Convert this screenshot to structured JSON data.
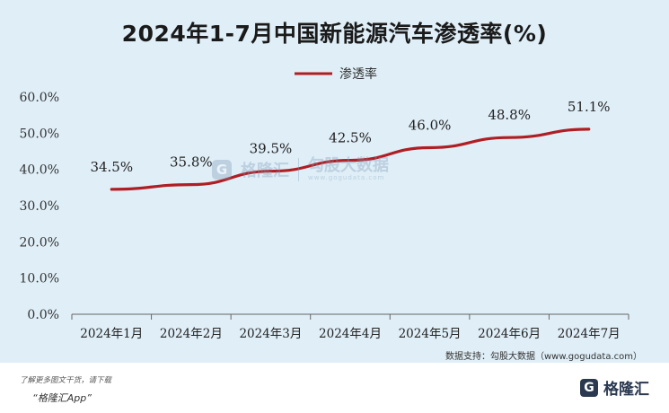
{
  "chart_data": {
    "type": "line",
    "title": "2024年1-7月中国新能源汽车渗透率(%)",
    "categories": [
      "2024年1月",
      "2024年2月",
      "2024年3月",
      "2024年4月",
      "2024年5月",
      "2024年6月",
      "2024年7月"
    ],
    "series": [
      {
        "name": "渗透率",
        "values": [
          34.5,
          35.8,
          39.5,
          42.5,
          46.0,
          48.8,
          51.1
        ]
      }
    ],
    "data_labels": [
      "34.5%",
      "35.8%",
      "39.5%",
      "42.5%",
      "46.0%",
      "48.8%",
      "51.1%"
    ],
    "yticks": [
      "0.0%",
      "10.0%",
      "20.0%",
      "30.0%",
      "40.0%",
      "50.0%",
      "60.0%"
    ],
    "ylim": [
      0,
      60
    ],
    "grid": false,
    "legend_position": "top-center",
    "line_color": "#b01e23"
  },
  "source_text": "数据支持：勾股大数据（www.gogudata.com）",
  "watermark": {
    "icon_glyph": "G",
    "brand": "格隆汇",
    "brand2": "勾股大数据",
    "url": "www.gogudata.com"
  },
  "footer": {
    "line1": "了解更多图文干货，请下载",
    "line2": "“格隆汇App”",
    "logo_icon": "G",
    "logo_text": "格隆汇"
  }
}
